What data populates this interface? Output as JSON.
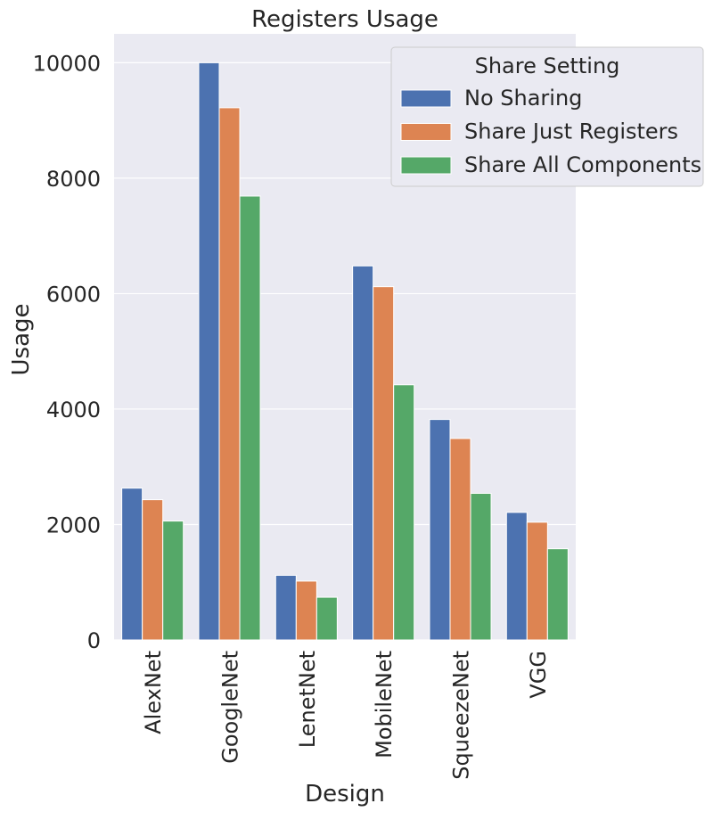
{
  "chart_data": {
    "type": "bar",
    "title": "Registers Usage",
    "xlabel": "Design",
    "ylabel": "Usage",
    "categories": [
      "AlexNet",
      "GoogleNet",
      "LenetNet",
      "MobileNet",
      "SqueezeNet",
      "VGG"
    ],
    "series": [
      {
        "name": "No Sharing",
        "color": "#4c72b0",
        "values": [
          2630,
          10000,
          1120,
          6480,
          3820,
          2210
        ]
      },
      {
        "name": "Share Just Registers",
        "color": "#dd8452",
        "values": [
          2430,
          9220,
          1020,
          6120,
          3490,
          2040
        ]
      },
      {
        "name": "Share All Components",
        "color": "#55a868",
        "values": [
          2060,
          7690,
          740,
          4420,
          2540,
          1580
        ]
      }
    ],
    "ylim": [
      0,
      10500
    ],
    "yticks": [
      0,
      2000,
      4000,
      6000,
      8000,
      10000
    ],
    "grid": true,
    "legend": {
      "title": "Share Setting",
      "placement": "top-right"
    },
    "background": "#eaeaf2"
  }
}
